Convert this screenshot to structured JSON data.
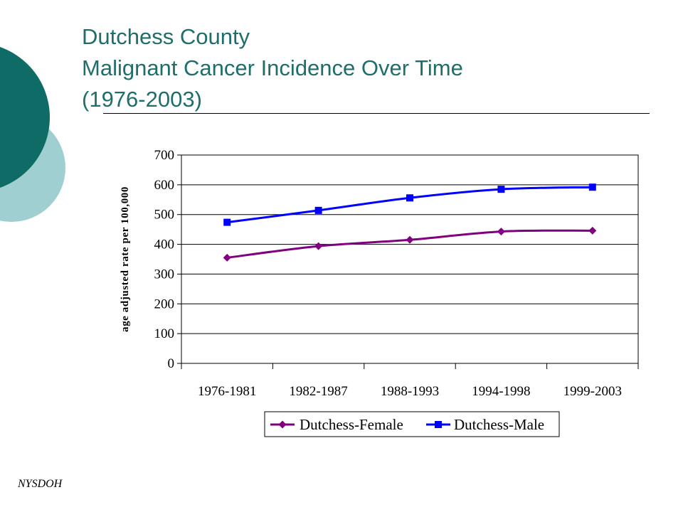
{
  "slide": {
    "title_lines": [
      "Dutchess County",
      "Malignant Cancer Incidence Over Time",
      "(1976-2003)"
    ],
    "footer": "NYSDOH"
  },
  "colors": {
    "title": "#1f6e6b",
    "decor_dark": "#0e6b66",
    "decor_light": "#9fcfd0",
    "female": "#800080",
    "male": "#0000ff"
  },
  "chart_data": {
    "type": "line",
    "title": "",
    "xlabel": "",
    "ylabel": "age adjusted rate per 100,000",
    "categories": [
      "1976-1981",
      "1982-1987",
      "1988-1993",
      "1994-1998",
      "1999-2003"
    ],
    "ylim": [
      0,
      700
    ],
    "yticks": [
      0,
      100,
      200,
      300,
      400,
      500,
      600,
      700
    ],
    "grid": true,
    "legend_position": "bottom",
    "series": [
      {
        "name": "Dutchess-Female",
        "marker": "diamond",
        "color": "#800080",
        "values": [
          355,
          394,
          415,
          443,
          446
        ]
      },
      {
        "name": "Dutchess-Male",
        "marker": "square",
        "color": "#0000ff",
        "values": [
          474,
          514,
          556,
          585,
          592
        ]
      }
    ]
  }
}
